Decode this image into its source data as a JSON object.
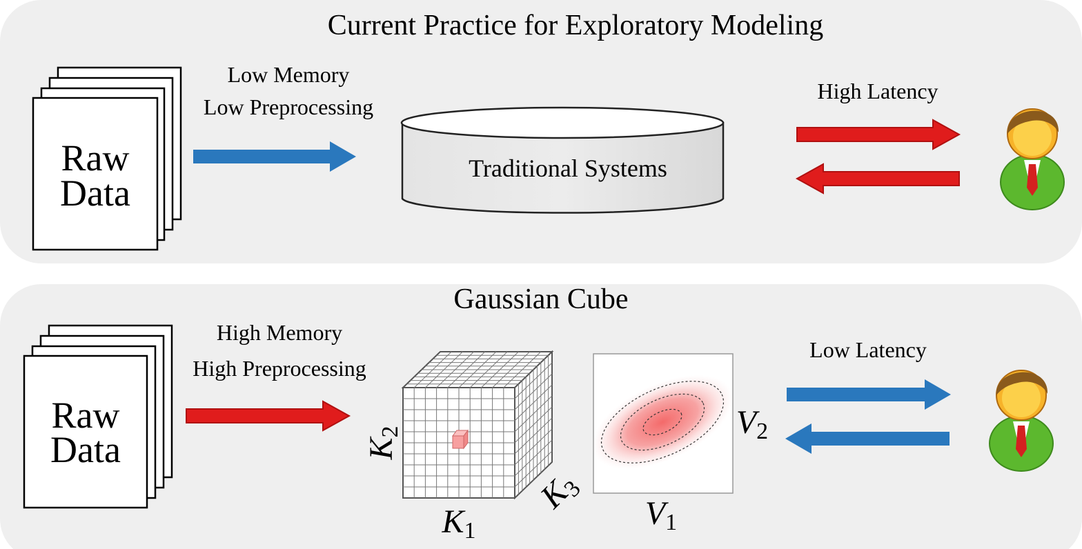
{
  "panels": [
    {
      "title": "Current Practice for Exploratory Modeling",
      "source": [
        "Raw",
        "Data"
      ],
      "arrow_labels": [
        "Low Memory",
        "Low Preprocessing"
      ],
      "system": "Traditional Systems",
      "latency": "High Latency"
    },
    {
      "title": "Gaussian Cube",
      "source": [
        "Raw",
        "Data"
      ],
      "arrow_labels": [
        "High Memory",
        "High Preprocessing"
      ],
      "cube_axes": [
        {
          "base": "K",
          "sub": "1"
        },
        {
          "base": "K",
          "sub": "2"
        },
        {
          "base": "K",
          "sub": "3"
        }
      ],
      "plot_axes": [
        {
          "base": "V",
          "sub": "1"
        },
        {
          "base": "V",
          "sub": "2"
        }
      ],
      "latency": "Low Latency"
    }
  ]
}
